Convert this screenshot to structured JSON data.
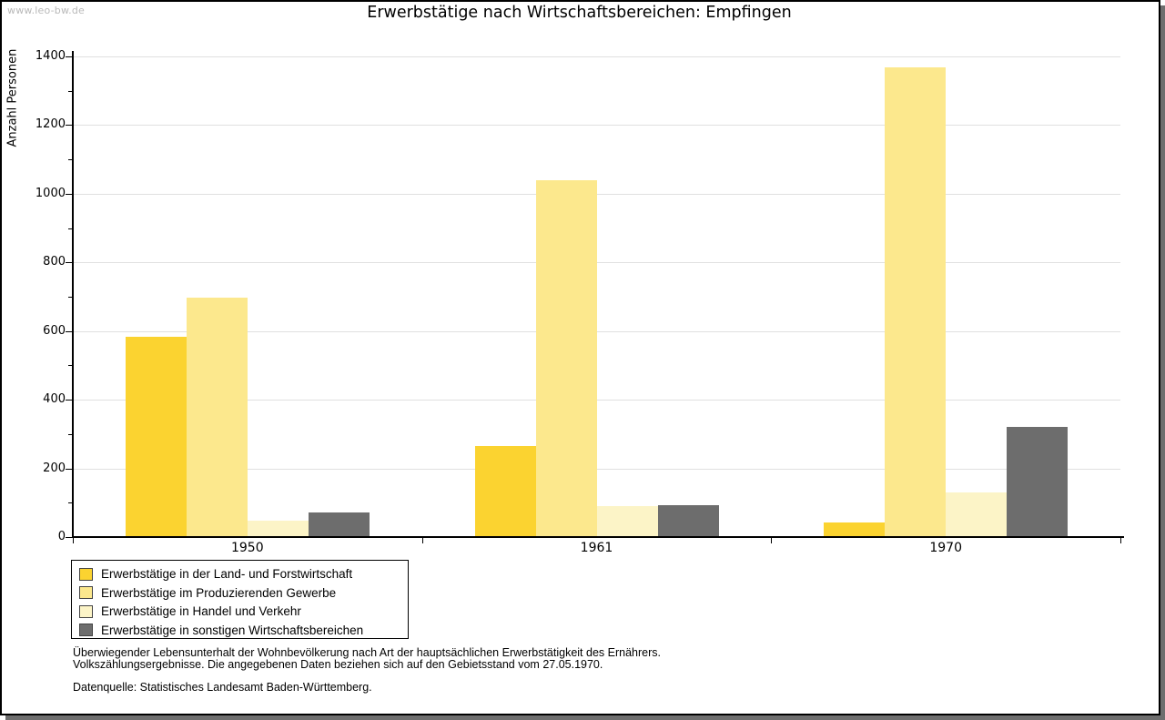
{
  "watermark": "www.leo-bw.de",
  "title": "Erwerbstätige nach Wirtschaftsbereichen: Empfingen",
  "chart_data": {
    "type": "bar",
    "title": "Erwerbstätige nach Wirtschaftsbereichen: Empfingen",
    "xlabel": "",
    "ylabel": "Anzahl Personen",
    "ylim": [
      0,
      1400
    ],
    "ytick_step": 200,
    "ytick_minor_step": 100,
    "grid": "horizontal",
    "legend_position": "bottom-left",
    "categories": [
      "1950",
      "1961",
      "1970"
    ],
    "series": [
      {
        "name": "Erwerbstätige in der Land- und Forstwirtschaft",
        "color": "#fbd330",
        "values": [
          583,
          265,
          43
        ]
      },
      {
        "name": "Erwerbstätige im Produzierenden Gewerbe",
        "color": "#fce88d",
        "values": [
          697,
          1039,
          1369
        ]
      },
      {
        "name": "Erwerbstätige in Handel und Verkehr",
        "color": "#fcf4c7",
        "values": [
          48,
          90,
          130
        ]
      },
      {
        "name": "Erwerbstätige in sonstigen Wirtschaftsbereichen",
        "color": "#6d6d6d",
        "values": [
          72,
          94,
          320
        ]
      }
    ]
  },
  "footnotes": [
    "Überwiegender Lebensunterhalt der Wohnbevölkerung nach Art der hauptsächlichen Erwerbstätigkeit des Ernährers.",
    "Volkszählungsergebnisse. Die angegebenen Daten beziehen sich auf den Gebietsstand vom 27.05.1970."
  ],
  "source": "Datenquelle: Statistisches Landesamt Baden-Württemberg.",
  "colors": {
    "axis": "#000000",
    "grid": "#e0e0e0",
    "watermark": "#b9b9b9",
    "frame_shadow": "#6e6e6e"
  }
}
